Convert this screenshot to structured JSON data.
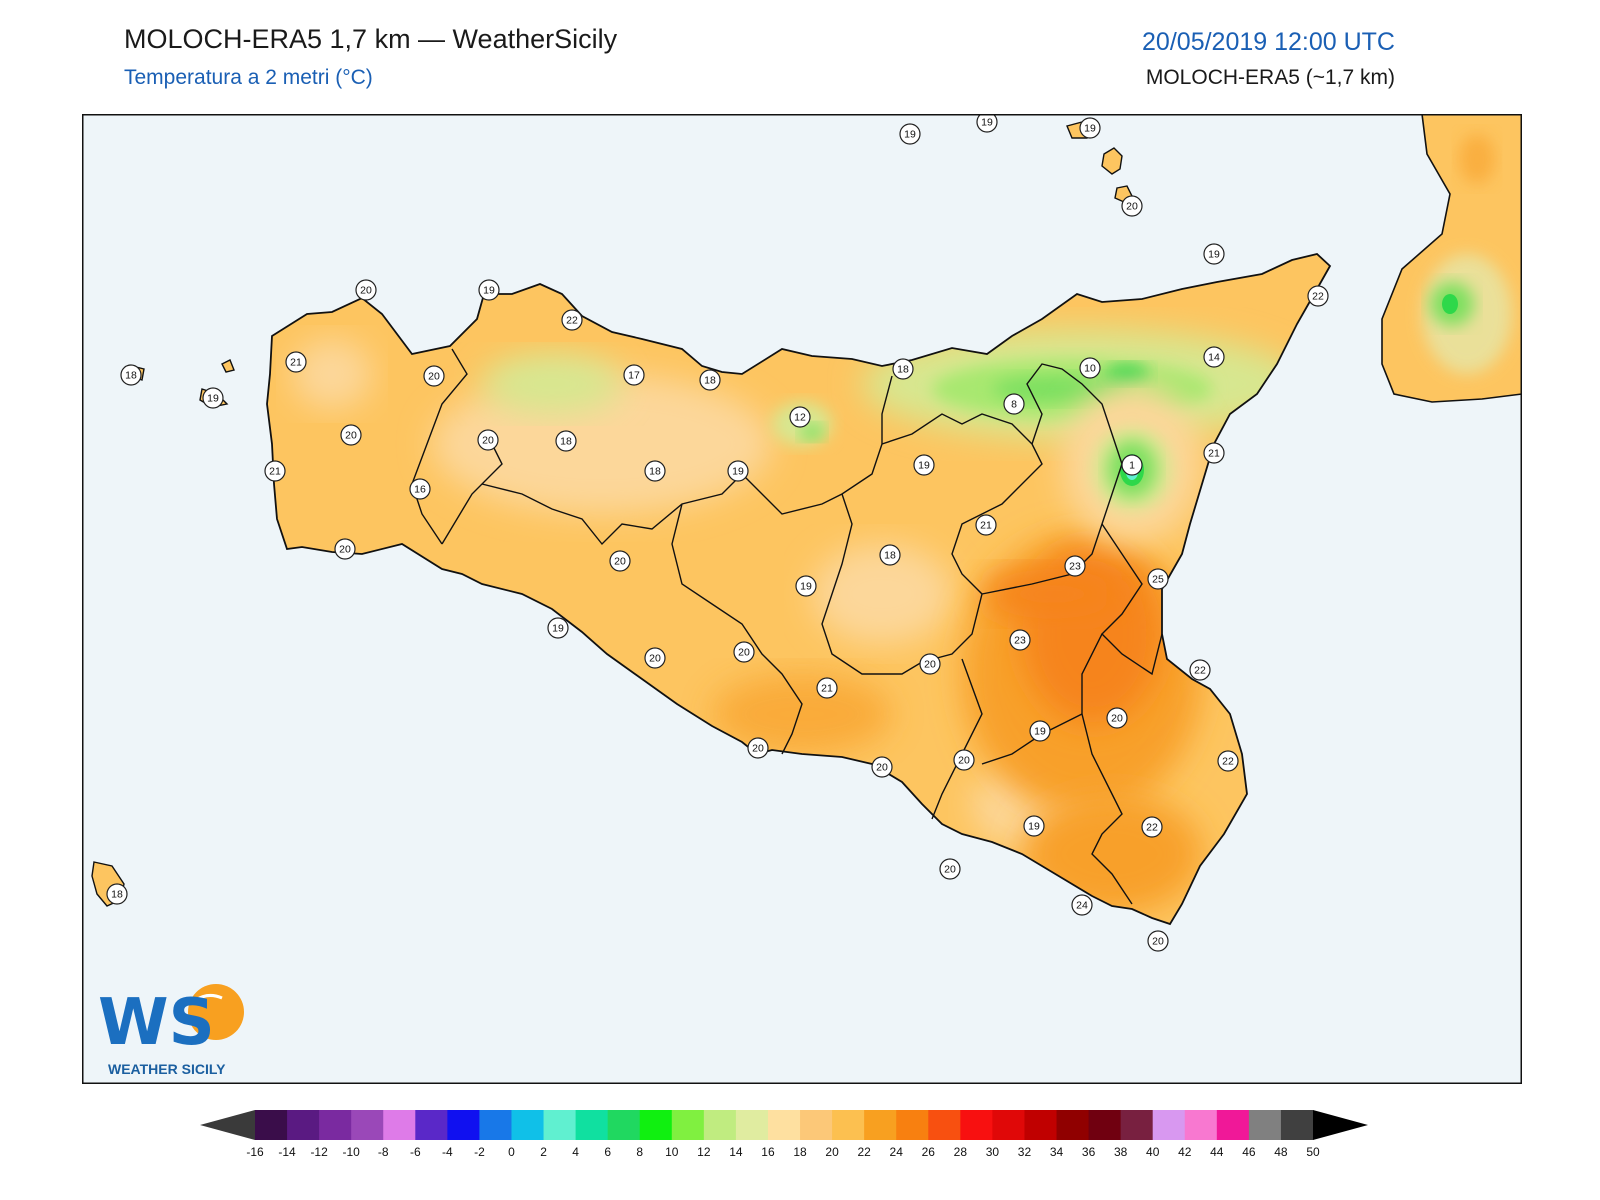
{
  "header": {
    "title": "MOLOCH-ERA5 1,7 km — WeatherSicily",
    "subtitle": "Temperatura a 2 metri (°C)",
    "datetime": "20/05/2019 12:00 UTC",
    "model_note": "MOLOCH-ERA5 (~1,7 km)"
  },
  "logo": {
    "letters": "WS",
    "text": "WEATHER SICILY"
  },
  "colors": {
    "sea": "#eef5f9",
    "land_base": "#fdc560",
    "warm": "#f8a02a",
    "hot": "#f6841a",
    "cool": "#fcd79a",
    "green_light": "#d7e790",
    "green": "#7ee060",
    "green_dark": "#2ed84a"
  },
  "stations": [
    {
      "label": "19"
    },
    {
      "label": "19"
    },
    {
      "label": "19"
    },
    {
      "label": "20"
    },
    {
      "label": "19"
    },
    {
      "label": "22"
    },
    {
      "label": "20"
    },
    {
      "label": "19"
    },
    {
      "label": "22"
    },
    {
      "label": "21"
    },
    {
      "label": "18"
    },
    {
      "label": "19"
    },
    {
      "label": "20"
    },
    {
      "label": "17"
    },
    {
      "label": "18"
    },
    {
      "label": "18"
    },
    {
      "label": "10"
    },
    {
      "label": "14"
    },
    {
      "label": "20"
    },
    {
      "label": "12"
    },
    {
      "label": "8"
    },
    {
      "label": "20"
    },
    {
      "label": "18"
    },
    {
      "label": "19"
    },
    {
      "label": "1"
    },
    {
      "label": "18"
    },
    {
      "label": "19"
    },
    {
      "label": "21"
    },
    {
      "label": "21"
    },
    {
      "label": "16"
    },
    {
      "label": "21"
    },
    {
      "label": "20"
    },
    {
      "label": "20"
    },
    {
      "label": "18"
    },
    {
      "label": "19"
    },
    {
      "label": "23"
    },
    {
      "label": "25"
    },
    {
      "label": "19"
    },
    {
      "label": "20"
    },
    {
      "label": "20"
    },
    {
      "label": "23"
    },
    {
      "label": "20"
    },
    {
      "label": "21"
    },
    {
      "label": "22"
    },
    {
      "label": "20"
    },
    {
      "label": "19"
    },
    {
      "label": "20"
    },
    {
      "label": "20"
    },
    {
      "label": "20"
    },
    {
      "label": "22"
    },
    {
      "label": "19"
    },
    {
      "label": "22"
    },
    {
      "label": "20"
    },
    {
      "label": "18"
    },
    {
      "label": "24"
    },
    {
      "label": "20"
    }
  ],
  "colorbar": {
    "ticks": [
      "-16",
      "-14",
      "-12",
      "-10",
      "-8",
      "-6",
      "-4",
      "-2",
      "0",
      "2",
      "4",
      "6",
      "8",
      "10",
      "12",
      "14",
      "16",
      "18",
      "20",
      "22",
      "24",
      "26",
      "28",
      "30",
      "32",
      "34",
      "36",
      "38",
      "40",
      "42",
      "44",
      "46",
      "48",
      "50"
    ],
    "colors": [
      "#3a0d4a",
      "#5a1a82",
      "#7a2aa0",
      "#9a48b8",
      "#de7be8",
      "#5a28c8",
      "#1010f0",
      "#1878e8",
      "#10c0e8",
      "#60f0d0",
      "#10e0a0",
      "#20d860",
      "#10f010",
      "#80f040",
      "#c0ec80",
      "#e0eca0",
      "#fee0a0",
      "#fcc878",
      "#fcc050",
      "#f8a020",
      "#f88010",
      "#f85010",
      "#f81010",
      "#e00808",
      "#c00000",
      "#900000",
      "#700010",
      "#782040",
      "#d898f0",
      "#f878d0",
      "#f01898",
      "#808080",
      "#404040"
    ]
  }
}
